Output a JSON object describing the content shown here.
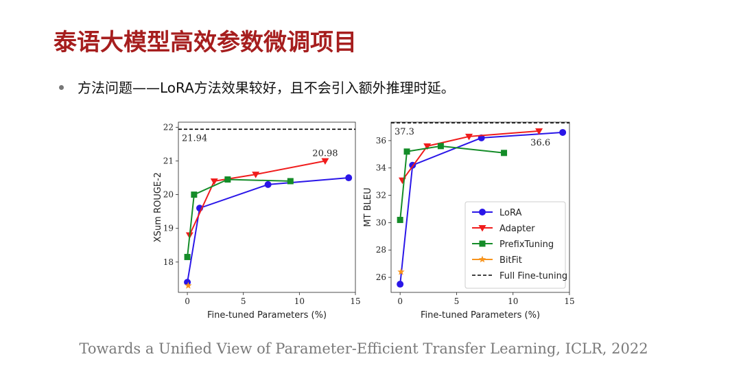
{
  "slide": {
    "title": "泰语大模型高效参数微调项目",
    "bullet": "方法问题——LoRA方法效果较好，且不会引入额外推理时延。",
    "caption": "Towards a Unified View of Parameter-Efficient Transfer Learning, ICLR, 2022"
  },
  "colors": {
    "title": "#a61e1e",
    "lora": "#2a16e8",
    "adapter": "#f01c1c",
    "prefix": "#148c28",
    "bitfit": "#f7941d",
    "full": "#000000"
  },
  "chart_data": [
    {
      "type": "line",
      "xlabel": "Fine-tuned Parameters (%)",
      "ylabel": "XSum ROUGE-2",
      "xlim": [
        -0.8,
        15
      ],
      "ylim": [
        17.1,
        22.15
      ],
      "xticks": [
        0,
        5,
        10,
        15
      ],
      "yticks": [
        18,
        19,
        20,
        21,
        22
      ],
      "grid": false,
      "legend": null,
      "reference_line": {
        "name": "Full Fine-tuning",
        "value": 21.94,
        "label": "21.94"
      },
      "annotations": [
        {
          "text": "20.98",
          "x": 12.3,
          "y": 20.98
        }
      ],
      "series": [
        {
          "name": "LoRA",
          "marker": "circle",
          "x": [
            0.0,
            1.1,
            7.2,
            14.4
          ],
          "y": [
            17.4,
            19.6,
            20.3,
            20.5
          ]
        },
        {
          "name": "Adapter",
          "marker": "triangle-down",
          "x": [
            0.2,
            2.4,
            6.1,
            12.3
          ],
          "y": [
            18.8,
            20.4,
            20.6,
            21.0
          ]
        },
        {
          "name": "PrefixTuning",
          "marker": "square",
          "x": [
            0.0,
            0.6,
            3.6,
            9.2
          ],
          "y": [
            18.15,
            20.0,
            20.45,
            20.4
          ]
        },
        {
          "name": "BitFit",
          "marker": "star",
          "x": [
            0.08
          ],
          "y": [
            17.3
          ]
        }
      ]
    },
    {
      "type": "line",
      "xlabel": "Fine-tuned Parameters (%)",
      "ylabel": "MT BLEU",
      "xlim": [
        -0.8,
        15
      ],
      "ylim": [
        24.9,
        37.35
      ],
      "xticks": [
        0,
        5,
        10,
        15
      ],
      "yticks": [
        26,
        28,
        30,
        32,
        34,
        36
      ],
      "grid": false,
      "legend": "lower-right",
      "reference_line": {
        "name": "Full Fine-tuning",
        "value": 37.3,
        "label": "37.3"
      },
      "annotations": [
        {
          "text": "36.6",
          "x": 14.4,
          "y": 36.6
        }
      ],
      "series": [
        {
          "name": "LoRA",
          "marker": "circle",
          "x": [
            0.0,
            1.1,
            7.2,
            14.4
          ],
          "y": [
            25.5,
            34.2,
            36.2,
            36.6
          ]
        },
        {
          "name": "Adapter",
          "marker": "triangle-down",
          "x": [
            0.2,
            2.4,
            6.1,
            12.3
          ],
          "y": [
            33.1,
            35.6,
            36.3,
            36.7
          ]
        },
        {
          "name": "PrefixTuning",
          "marker": "square",
          "x": [
            0.0,
            0.6,
            3.6,
            9.2
          ],
          "y": [
            30.2,
            35.2,
            35.6,
            35.1
          ]
        },
        {
          "name": "BitFit",
          "marker": "star",
          "x": [
            0.08
          ],
          "y": [
            26.4
          ]
        }
      ]
    }
  ]
}
